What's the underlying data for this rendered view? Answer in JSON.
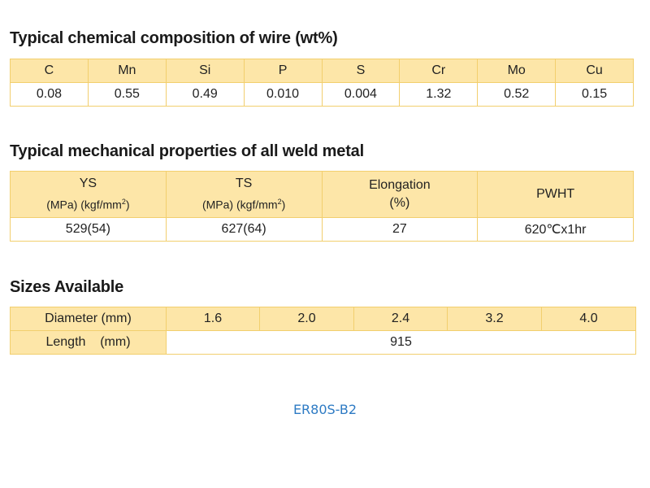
{
  "chemical": {
    "title": "Typical chemical composition of wire (wt%)",
    "elements": [
      "C",
      "Mn",
      "Si",
      "P",
      "S",
      "Cr",
      "Mo",
      "Cu"
    ],
    "values": [
      "0.08",
      "0.55",
      "0.49",
      "0.010",
      "0.004",
      "1.32",
      "0.52",
      "0.15"
    ]
  },
  "mechanical": {
    "title": "Typical mechanical properties of all weld metal",
    "headers": [
      {
        "name": "YS",
        "unit_mpa": "(MPa)",
        "unit_kgf": "(kgf/mm",
        "unit_exp": "2",
        "unit_close": ")"
      },
      {
        "name": "TS",
        "unit_mpa": "(MPa)",
        "unit_kgf": "(kgf/mm",
        "unit_exp": "2",
        "unit_close": ")"
      },
      {
        "name": "Elongation",
        "unit": "(%)"
      },
      {
        "name": "PWHT"
      }
    ],
    "values": [
      "529(54)",
      "627(64)",
      "27",
      "620℃x1hr"
    ]
  },
  "sizes": {
    "title": "Sizes Available",
    "diameter_label": "Diameter (mm)",
    "diameters": [
      "1.6",
      "2.0",
      "2.4",
      "3.2",
      "4.0"
    ],
    "length_label": "Length    (mm)",
    "length_value": "915"
  },
  "footer": {
    "code": "ER80S-B2"
  }
}
